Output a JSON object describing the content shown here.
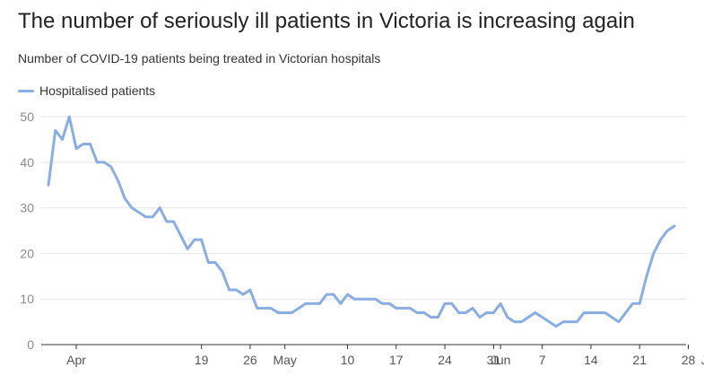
{
  "title": "The number of seriously ill patients in Victoria is increasing again",
  "subtitle": "Number of COVID-19 patients being treated in Victorian hospitals",
  "colors": {
    "line": "#8aaee0",
    "grid": "#e6e6e6",
    "axis": "#333333"
  },
  "chart_data": {
    "type": "line",
    "title": "The number of seriously ill patients in Victoria is increasing again",
    "subtitle": "Number of COVID-19 patients being treated in Victorian hospitals",
    "xlabel": "",
    "ylabel": "",
    "ylim": [
      0,
      50
    ],
    "yticks": [
      0,
      10,
      20,
      30,
      40,
      50
    ],
    "grid": true,
    "legend_position": "top-left",
    "x_start": "Mar 28",
    "x_tick_labels": [
      {
        "label": "Apr",
        "day_index": 4
      },
      {
        "label": "19",
        "day_index": 22
      },
      {
        "label": "26",
        "day_index": 29
      },
      {
        "label": "May",
        "day_index": 34
      },
      {
        "label": "10",
        "day_index": 43
      },
      {
        "label": "17",
        "day_index": 50
      },
      {
        "label": "24",
        "day_index": 57
      },
      {
        "label": "31",
        "day_index": 64
      },
      {
        "label": "Jun",
        "day_index": 65
      },
      {
        "label": "7",
        "day_index": 71
      },
      {
        "label": "14",
        "day_index": 78
      },
      {
        "label": "21",
        "day_index": 85
      },
      {
        "label": "28",
        "day_index": 92
      },
      {
        "label": "Jul",
        "day_index": 95
      }
    ],
    "series": [
      {
        "name": "Hospitalised patients",
        "values": [
          35,
          47,
          45,
          50,
          43,
          44,
          44,
          40,
          40,
          39,
          36,
          32,
          30,
          29,
          28,
          28,
          30,
          27,
          27,
          24,
          21,
          23,
          23,
          18,
          18,
          16,
          12,
          12,
          11,
          12,
          8,
          8,
          8,
          7,
          7,
          7,
          8,
          9,
          9,
          9,
          11,
          11,
          9,
          11,
          10,
          10,
          10,
          10,
          9,
          9,
          8,
          8,
          8,
          7,
          7,
          6,
          6,
          9,
          9,
          7,
          7,
          8,
          6,
          7,
          7,
          9,
          6,
          5,
          5,
          6,
          7,
          6,
          5,
          4,
          5,
          5,
          5,
          7,
          7,
          7,
          7,
          6,
          5,
          7,
          9,
          9,
          15,
          20,
          23,
          25,
          26
        ]
      }
    ]
  }
}
